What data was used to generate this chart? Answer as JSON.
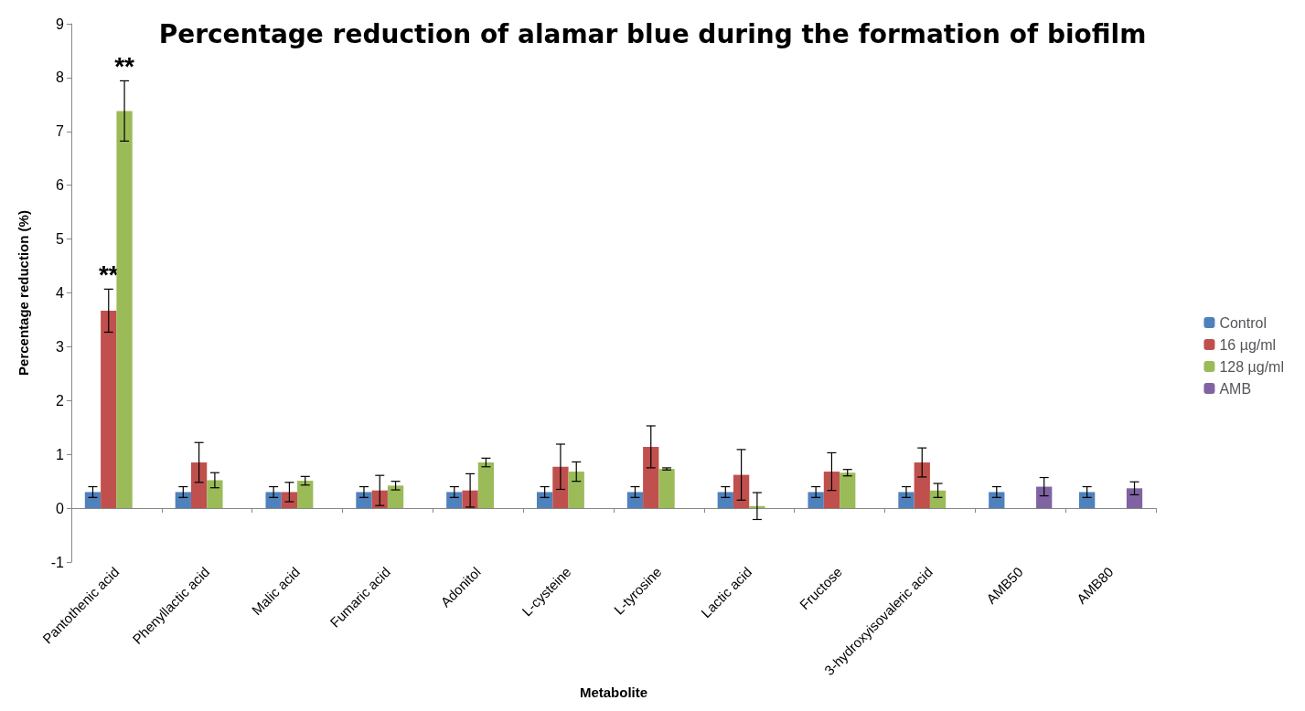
{
  "chart_data": {
    "type": "bar",
    "title": "Percentage reduction of alamar blue during the formation of biofilm",
    "xlabel": "Metabolite",
    "ylabel": "Percentage reduction (%)",
    "categories": [
      "Pantothenic acid",
      "Phenyllactic acid",
      "Malic acid",
      "Fumaric acid",
      "Adonitol",
      "L-cysteine",
      "L-tyrosine",
      "Lactic acid",
      "Fructose",
      "3-hydroxyisovaleric acid",
      "AMB50",
      "AMB80"
    ],
    "series": [
      {
        "name": "Control",
        "color": "#4f81bd",
        "values": [
          0.3,
          0.3,
          0.3,
          0.3,
          0.3,
          0.3,
          0.3,
          0.3,
          0.3,
          0.3,
          0.3,
          0.3
        ],
        "errors": [
          0.1,
          0.1,
          0.1,
          0.1,
          0.1,
          0.1,
          0.1,
          0.1,
          0.1,
          0.1,
          0.1,
          0.1
        ]
      },
      {
        "name": "16 µg/ml",
        "color": "#c0504d",
        "values": [
          3.67,
          0.85,
          0.3,
          0.33,
          0.33,
          0.77,
          1.14,
          0.62,
          0.68,
          0.85,
          null,
          null
        ],
        "errors": [
          0.4,
          0.37,
          0.18,
          0.28,
          0.31,
          0.42,
          0.39,
          0.47,
          0.35,
          0.27,
          null,
          null
        ]
      },
      {
        "name": "128 µg/ml",
        "color": "#9bbb59",
        "values": [
          7.38,
          0.52,
          0.51,
          0.42,
          0.85,
          0.68,
          0.73,
          0.04,
          0.66,
          0.33,
          null,
          null
        ],
        "errors": [
          0.56,
          0.14,
          0.08,
          0.08,
          0.08,
          0.18,
          0.02,
          0.25,
          0.06,
          0.13,
          null,
          null
        ]
      },
      {
        "name": "AMB",
        "color": "#8064a2",
        "values": [
          null,
          null,
          null,
          null,
          null,
          null,
          null,
          null,
          null,
          null,
          0.4,
          0.37
        ],
        "errors": [
          null,
          null,
          null,
          null,
          null,
          null,
          null,
          null,
          null,
          null,
          0.17,
          0.12
        ]
      }
    ],
    "annotations": [
      {
        "text": "**",
        "x": "Pantothenic acid",
        "y": 4.07
      },
      {
        "text": "**",
        "x": "Pantothenic acid",
        "y": 7.94
      }
    ],
    "ylim": [
      -1,
      9
    ],
    "yticks": [
      -1,
      0,
      1,
      2,
      3,
      4,
      5,
      6,
      7,
      8,
      9
    ],
    "legend": "right"
  }
}
